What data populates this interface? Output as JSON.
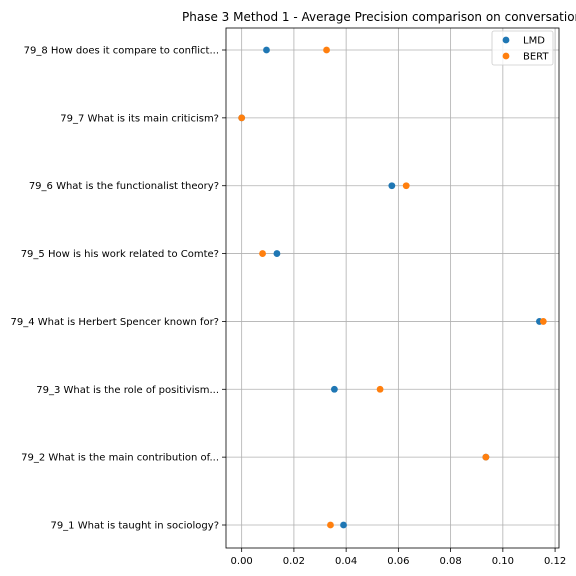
{
  "chart_data": {
    "type": "scatter",
    "title": "Phase 3 Method 1 - Average Precision comparison on conversation 79",
    "xlabel": "",
    "ylabel": "",
    "xlim": [
      -0.006,
      0.1215
    ],
    "xticks": [
      0.0,
      0.02,
      0.04,
      0.06,
      0.08,
      0.1,
      0.12
    ],
    "xtick_labels": [
      "0.00",
      "0.02",
      "0.04",
      "0.06",
      "0.08",
      "0.10",
      "0.12"
    ],
    "grid": true,
    "legend_position": "top-right",
    "categories": [
      "79_1 What is taught in sociology?",
      "79_2 What is the main contribution of...",
      "79_3 What is the role of positivism...",
      "79_4 What is Herbert Spencer known for?",
      "79_5 How is his work related to Comte?",
      "79_6 What is the functionalist theory?",
      "79_7 What is its main criticism?",
      "79_8 How does it compare to conflict..."
    ],
    "series": [
      {
        "name": "LMD",
        "color": "#1f77b4",
        "values": [
          0.039,
          0.0935,
          0.0355,
          0.114,
          0.0135,
          0.0575,
          0.0,
          0.0095
        ]
      },
      {
        "name": "BERT",
        "color": "#ff7f0e",
        "values": [
          0.034,
          0.0935,
          0.053,
          0.1155,
          0.008,
          0.063,
          0.0,
          0.0325
        ]
      }
    ]
  }
}
